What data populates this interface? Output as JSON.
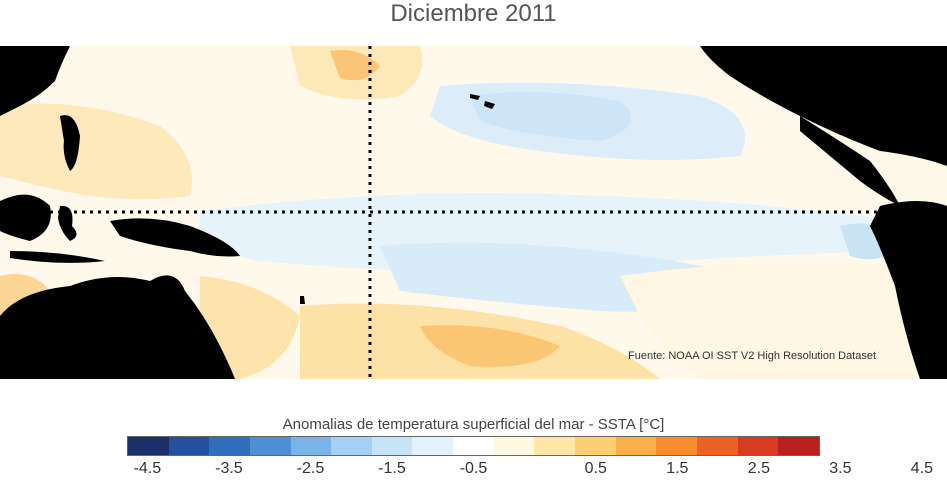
{
  "title": "Diciembre 2011",
  "source_note": "Fuente: NOAA OI SST V2 High Resolution Dataset",
  "colorbar": {
    "label": "Anomalias de temperatura superficial del mar - SSTA  [°C]",
    "ticks": [
      "-4.5",
      "-3.5",
      "-2.5",
      "-1.5",
      "-0.5",
      "0.5",
      "1.5",
      "2.5",
      "3.5",
      "4.5"
    ],
    "colors": [
      "#1b2f6b",
      "#24519c",
      "#2f6fbc",
      "#4d91d2",
      "#78b4e6",
      "#a4d1f1",
      "#c7e3f6",
      "#e3f1fa",
      "#ffffff",
      "#fff7e0",
      "#ffe6a6",
      "#fdcf73",
      "#fbaf4a",
      "#f78d2e",
      "#ee6124",
      "#d93a20",
      "#b91f1d"
    ]
  },
  "colors": {
    "land": "#000000",
    "warm": "#fde3a8",
    "cool": "#d4eaf8",
    "guide_line": "#000000"
  }
}
